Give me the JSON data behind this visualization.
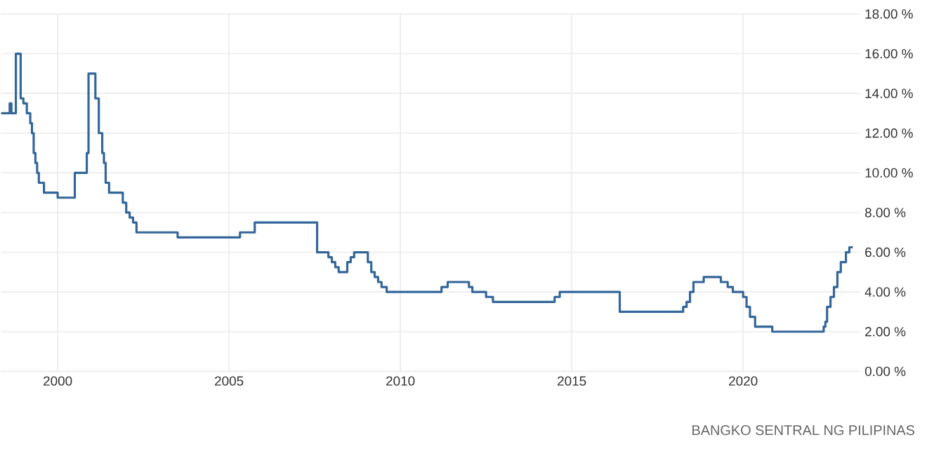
{
  "chart_data": {
    "type": "step",
    "annotations": [
      "BANGKO SENTRAL NG PILIPINAS"
    ],
    "x": [
      1998.35,
      1998.6,
      1998.65,
      1998.78,
      1998.92,
      1999.0,
      1999.1,
      1999.2,
      1999.25,
      1999.3,
      1999.35,
      1999.4,
      1999.45,
      1999.6,
      2000.0,
      2000.5,
      2000.85,
      2000.9,
      2001.1,
      2001.2,
      2001.3,
      2001.35,
      2001.4,
      2001.5,
      2001.9,
      2002.0,
      2002.1,
      2002.2,
      2002.3,
      2003.5,
      2005.32,
      2005.75,
      2007.57,
      2007.9,
      2008.0,
      2008.1,
      2008.2,
      2008.45,
      2008.55,
      2008.65,
      2009.05,
      2009.15,
      2009.25,
      2009.35,
      2009.45,
      2009.6,
      2011.2,
      2011.38,
      2012.0,
      2012.1,
      2012.5,
      2012.7,
      2014.5,
      2014.65,
      2016.4,
      2018.25,
      2018.35,
      2018.45,
      2018.55,
      2018.85,
      2019.35,
      2019.55,
      2019.7,
      2020.0,
      2020.1,
      2020.2,
      2020.35,
      2020.85,
      2022.35,
      2022.4,
      2022.45,
      2022.55,
      2022.65,
      2022.75,
      2022.85,
      2023.0,
      2023.1,
      2023.2
    ],
    "values": [
      13.0,
      13.5,
      13.0,
      16.0,
      13.75,
      13.5,
      13.0,
      12.5,
      12.0,
      11.0,
      10.5,
      10.0,
      9.5,
      9.0,
      8.75,
      10.0,
      11.0,
      15.0,
      13.75,
      12.0,
      11.0,
      10.5,
      9.5,
      9.0,
      8.5,
      8.0,
      7.75,
      7.5,
      7.0,
      6.75,
      7.0,
      7.5,
      6.0,
      5.75,
      5.5,
      5.25,
      5.0,
      5.5,
      5.75,
      6.0,
      5.5,
      5.0,
      4.75,
      4.5,
      4.25,
      4.0,
      4.25,
      4.5,
      4.25,
      4.0,
      3.75,
      3.5,
      3.75,
      4.0,
      3.0,
      3.25,
      3.5,
      4.0,
      4.5,
      4.75,
      4.5,
      4.25,
      4.0,
      3.75,
      3.25,
      2.75,
      2.25,
      2.0,
      2.25,
      2.5,
      3.25,
      3.75,
      4.25,
      5.0,
      5.5,
      6.0,
      6.25,
      6.25
    ],
    "color": "#336699",
    "xlim": [
      1998.35,
      2023.4
    ],
    "xticks": [
      2000,
      2005,
      2010,
      2015,
      2020
    ],
    "ylim": [
      0,
      18
    ],
    "yticks": [
      {
        "value": 0,
        "label": "0.00 %"
      },
      {
        "value": 2,
        "label": "2.00 %"
      },
      {
        "value": 4,
        "label": "4.00 %"
      },
      {
        "value": 6,
        "label": "6.00 %"
      },
      {
        "value": 8,
        "label": "8.00 %"
      },
      {
        "value": 10,
        "label": "10.00 %"
      },
      {
        "value": 12,
        "label": "12.00 %"
      },
      {
        "value": 14,
        "label": "14.00 %"
      },
      {
        "value": 16,
        "label": "16.00 %"
      },
      {
        "value": 18,
        "label": "18.00 %"
      }
    ],
    "grid": true
  }
}
